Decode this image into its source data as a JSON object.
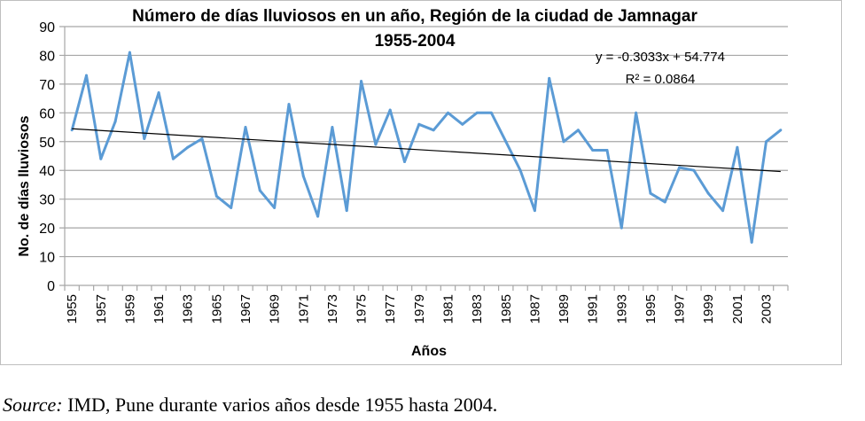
{
  "chart_data": {
    "type": "line",
    "title_line1": "Número de días lluviosos en un año, Región de la ciudad de Jamnagar",
    "title_line2": "1955-2004",
    "xlabel": "Años",
    "ylabel": "No. de días lluviosos",
    "ylim": [
      0,
      90
    ],
    "yticks": [
      "0",
      "10",
      "20",
      "30",
      "40",
      "50",
      "60",
      "70",
      "80",
      "90"
    ],
    "ytick_values": [
      0,
      10,
      20,
      30,
      40,
      50,
      60,
      70,
      80,
      90
    ],
    "grid": true,
    "x": [
      1955,
      1956,
      1957,
      1958,
      1959,
      1960,
      1961,
      1962,
      1963,
      1964,
      1965,
      1966,
      1967,
      1968,
      1969,
      1970,
      1971,
      1972,
      1973,
      1974,
      1975,
      1976,
      1977,
      1978,
      1979,
      1980,
      1981,
      1982,
      1983,
      1984,
      1985,
      1986,
      1987,
      1988,
      1989,
      1990,
      1991,
      1992,
      1993,
      1994,
      1995,
      1996,
      1997,
      1998,
      1999,
      2000,
      2001,
      2002,
      2003,
      2004
    ],
    "xtick_labels": [
      "1955",
      "1957",
      "1959",
      "1961",
      "1963",
      "1965",
      "1967",
      "1969",
      "1971",
      "1973",
      "1975",
      "1977",
      "1979",
      "1981",
      "1983",
      "1985",
      "1987",
      "1989",
      "1991",
      "1993",
      "1995",
      "1997",
      "1999",
      "2001",
      "2003"
    ],
    "series": [
      {
        "name": "Días lluviosos",
        "color": "#5b9bd5",
        "values": [
          54,
          73,
          44,
          57,
          81,
          51,
          67,
          44,
          48,
          51,
          31,
          27,
          55,
          33,
          27,
          63,
          38,
          24,
          55,
          26,
          71,
          49,
          61,
          43,
          56,
          54,
          60,
          56,
          60,
          60,
          50,
          40,
          26,
          72,
          50,
          54,
          47,
          47,
          20,
          60,
          32,
          29,
          41,
          40,
          32,
          26,
          48,
          15,
          50,
          54
        ]
      }
    ],
    "trendline": {
      "type": "linear",
      "slope": -0.3033,
      "intercept": 54.774,
      "color": "#000000",
      "equation_label": "y = -0.3033x + 54.774",
      "r2_label": "R² = 0.0864"
    }
  },
  "source": {
    "label": "Source:",
    "text": " IMD, Pune durante varios años desde 1955 hasta 2004."
  }
}
